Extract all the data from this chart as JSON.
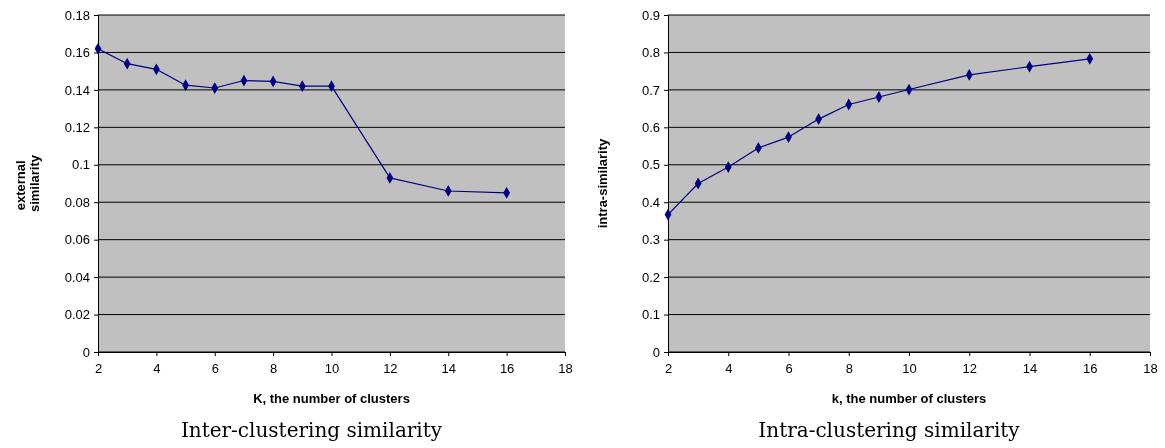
{
  "chart_data": [
    {
      "type": "line",
      "title": "Inter-clustering similarity",
      "xlabel": "K, the number of clusters",
      "ylabel": "external similarity",
      "xlim": [
        2,
        18
      ],
      "xticks": [
        2,
        4,
        6,
        8,
        10,
        12,
        14,
        16,
        18
      ],
      "ylim": [
        0,
        0.18
      ],
      "yticks": [
        0,
        0.02,
        0.04,
        0.06,
        0.08,
        0.1,
        0.12,
        0.14,
        0.16,
        0.18
      ],
      "grid": "y",
      "marker": "diamond",
      "line_style": "solid",
      "series": [
        {
          "color": "#000080",
          "x": [
            2,
            3,
            4,
            5,
            6,
            7,
            8,
            9,
            10,
            12,
            14,
            16
          ],
          "values": [
            0.162,
            0.154,
            0.151,
            0.1425,
            0.141,
            0.145,
            0.1445,
            0.142,
            0.142,
            0.093,
            0.086,
            0.085
          ]
        }
      ]
    },
    {
      "type": "line",
      "title": "Intra-clustering similarity",
      "xlabel": "k,  the number of clusters",
      "ylabel": "intra-similarity",
      "xlim": [
        2,
        18
      ],
      "xticks": [
        2,
        4,
        6,
        8,
        10,
        12,
        14,
        16,
        18
      ],
      "ylim": [
        0,
        0.9
      ],
      "yticks": [
        0,
        0.1,
        0.2,
        0.3,
        0.4,
        0.5,
        0.6,
        0.7,
        0.8,
        0.9
      ],
      "grid": "y",
      "marker": "diamond",
      "line_style": "solid",
      "series": [
        {
          "color": "#000080",
          "x": [
            2,
            3,
            4,
            5,
            6,
            7,
            8,
            9,
            10,
            12,
            14,
            16
          ],
          "values": [
            0.367,
            0.45,
            0.494,
            0.545,
            0.574,
            0.622,
            0.661,
            0.681,
            0.701,
            0.74,
            0.762,
            0.783
          ]
        }
      ]
    }
  ]
}
